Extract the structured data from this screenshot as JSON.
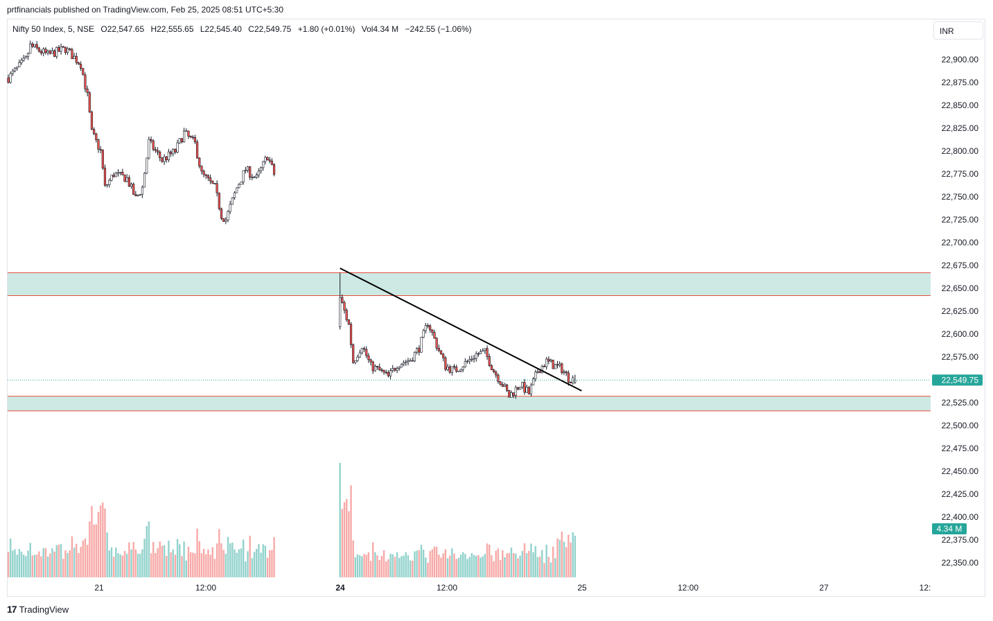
{
  "publisher": "prtfinancials published on TradingView.com, Feb 25, 2025 08:51 UTC+5:30",
  "legend": {
    "symbol": "Nifty 50 Index, 5, NSE",
    "open": "O22,547.65",
    "high": "H22,555.65",
    "low": "L22,545.40",
    "close": "C22,549.75",
    "change": "+1.80 (+0.01%)",
    "volume": "Vol4.34 M",
    "vol_change": "−242.55 (−1.06%)"
  },
  "currency": "INR",
  "footer": {
    "logo": "17",
    "brand": "TradingView"
  },
  "colors": {
    "up": "#26a69a",
    "down": "#ef5350",
    "candle": "#131722",
    "vol_up": "#92d2cc",
    "vol_down": "#f7a9a7",
    "zone_fill": "#cde9e4",
    "zone_border": "#e74c3c",
    "trendline": "#000000",
    "price_tag": "#26a69a"
  },
  "chart_data": {
    "type": "candlestick",
    "price_ticks": [
      "22,900.00",
      "22,875.00",
      "22,850.00",
      "22,825.00",
      "22,800.00",
      "22,775.00",
      "22,750.00",
      "22,725.00",
      "22,700.00",
      "22,675.00",
      "22,650.00",
      "22,625.00",
      "22,600.00",
      "22,575.00",
      "22,550.00",
      "22,525.00",
      "22,500.00",
      "22,475.00",
      "22,450.00",
      "22,425.00",
      "22,400.00",
      "22,375.00",
      "22,350.00"
    ],
    "price_tick_values": [
      22900,
      22875,
      22850,
      22825,
      22800,
      22775,
      22750,
      22725,
      22700,
      22675,
      22650,
      22625,
      22600,
      22575,
      22550,
      22525,
      22500,
      22475,
      22450,
      22425,
      22400,
      22375,
      22350
    ],
    "time_ticks": [
      {
        "label": "21",
        "bold": false
      },
      {
        "label": "12:00",
        "bold": false
      },
      {
        "label": "24",
        "bold": true
      },
      {
        "label": "12:00",
        "bold": false
      },
      {
        "label": "25",
        "bold": false
      },
      {
        "label": "12:00",
        "bold": false
      },
      {
        "label": "27",
        "bold": false
      },
      {
        "label": "12:",
        "bold": false
      }
    ],
    "last_price": 22549.75,
    "last_price_label": "22,549.75",
    "last_volume_label": "4.34 M",
    "zones": [
      {
        "top": 22667,
        "bottom": 22642
      },
      {
        "top": 22532,
        "bottom": 22516
      }
    ],
    "trendline": {
      "from": {
        "bar": 88,
        "price": 22672
      },
      "to": {
        "bar": 198,
        "price": 22538
      }
    },
    "day1_anchors": [
      [
        0,
        22880
      ],
      [
        8,
        22900
      ],
      [
        10,
        22915
      ],
      [
        18,
        22905
      ],
      [
        26,
        22912
      ],
      [
        33,
        22895
      ],
      [
        36,
        22860
      ],
      [
        38,
        22820
      ],
      [
        42,
        22800
      ],
      [
        44,
        22760
      ],
      [
        48,
        22775
      ],
      [
        54,
        22770
      ],
      [
        58,
        22748
      ],
      [
        61,
        22760
      ],
      [
        64,
        22810
      ],
      [
        70,
        22790
      ],
      [
        76,
        22800
      ],
      [
        80,
        22820
      ],
      [
        85,
        22808
      ],
      [
        88,
        22775
      ],
      [
        94,
        22760
      ],
      [
        97,
        22730
      ],
      [
        99,
        22725
      ],
      [
        104,
        22760
      ],
      [
        108,
        22780
      ],
      [
        113,
        22770
      ],
      [
        118,
        22795
      ],
      [
        121,
        22775
      ]
    ],
    "day2_anchors": [
      [
        0,
        22640
      ],
      [
        4,
        22610
      ],
      [
        6,
        22570
      ],
      [
        10,
        22588
      ],
      [
        14,
        22565
      ],
      [
        18,
        22560
      ],
      [
        22,
        22553
      ],
      [
        26,
        22567
      ],
      [
        32,
        22572
      ],
      [
        36,
        22585
      ],
      [
        40,
        22613
      ],
      [
        44,
        22588
      ],
      [
        48,
        22565
      ],
      [
        52,
        22560
      ],
      [
        58,
        22570
      ],
      [
        62,
        22578
      ],
      [
        66,
        22580
      ],
      [
        70,
        22560
      ],
      [
        74,
        22545
      ],
      [
        77,
        22532
      ],
      [
        82,
        22545
      ],
      [
        86,
        22535
      ],
      [
        90,
        22560
      ],
      [
        94,
        22570
      ],
      [
        98,
        22565
      ],
      [
        101,
        22562
      ],
      [
        104,
        22552
      ],
      [
        107,
        22550
      ]
    ],
    "volume_ticks_note": ""
  }
}
